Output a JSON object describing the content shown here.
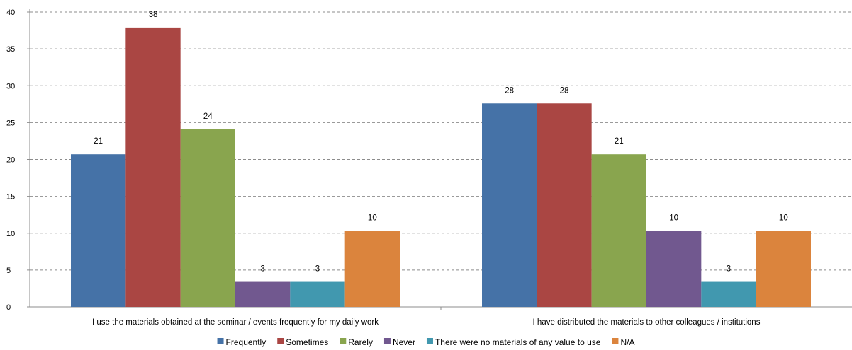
{
  "chart_data": {
    "type": "bar",
    "title": "",
    "xlabel": "",
    "ylabel": "",
    "ylim": [
      0,
      40
    ],
    "yticks": [
      0,
      5,
      10,
      15,
      20,
      25,
      30,
      35,
      40
    ],
    "grid": true,
    "legend_position": "bottom",
    "categories": [
      "I use the materials obtained at the seminar / events frequently for my daily work",
      "I have distributed the materials to other colleagues / institutions"
    ],
    "series": [
      {
        "name": "Frequently",
        "color": "#4572A7",
        "values": [
          20.7,
          27.6
        ],
        "labels": [
          "21",
          "28"
        ]
      },
      {
        "name": "Sometimes",
        "color": "#AA4643",
        "values": [
          37.9,
          27.6
        ],
        "labels": [
          "38",
          "28"
        ]
      },
      {
        "name": "Rarely",
        "color": "#89A54E",
        "values": [
          24.1,
          20.7
        ],
        "labels": [
          "24",
          "21"
        ]
      },
      {
        "name": "Never",
        "color": "#71588F",
        "values": [
          3.4,
          10.3
        ],
        "labels": [
          "3",
          "10"
        ]
      },
      {
        "name": "There were no materials of any value to use",
        "color": "#4198AF",
        "values": [
          3.4,
          3.4
        ],
        "labels": [
          "3",
          "3"
        ]
      },
      {
        "name": "N/A",
        "color": "#DB843D",
        "values": [
          10.3,
          10.3
        ],
        "labels": [
          "10",
          "10"
        ]
      }
    ]
  }
}
